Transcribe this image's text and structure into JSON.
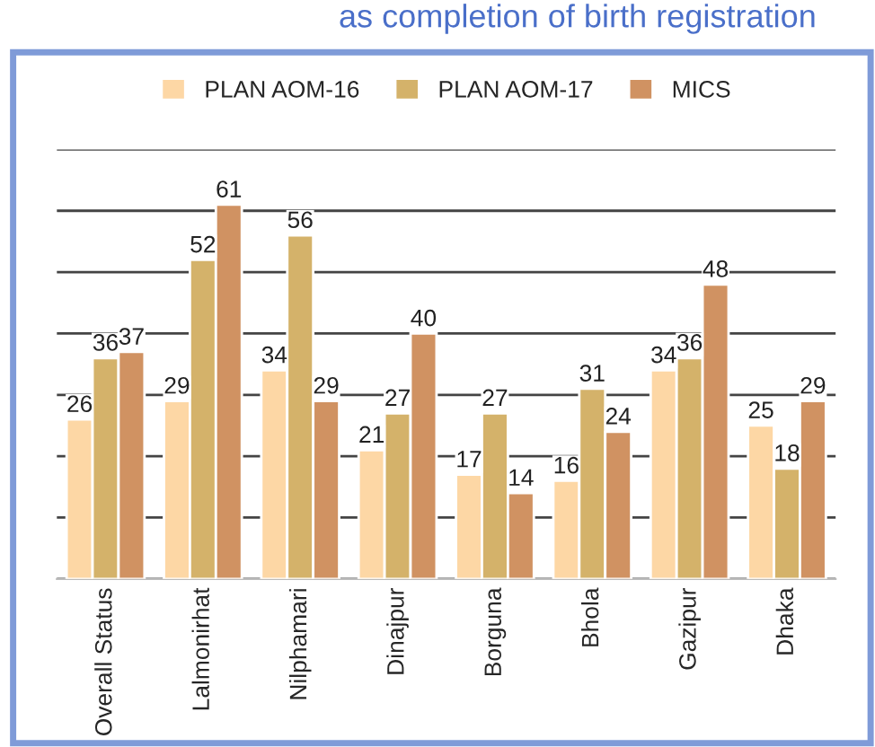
{
  "chart_data": {
    "type": "bar",
    "title": "as completion of birth registration",
    "categories": [
      "Overall Status",
      "Lalmonirhat",
      "Nilphamari",
      "Dinajpur",
      "Borguna",
      "Bhola",
      "Gazipur",
      "Dhaka"
    ],
    "series": [
      {
        "name": "PLAN AOM-16",
        "color": "#fdd7a5",
        "values": [
          26,
          29,
          34,
          21,
          17,
          16,
          34,
          25
        ]
      },
      {
        "name": "PLAN AOM-17",
        "color": "#d4b26a",
        "values": [
          36,
          52,
          56,
          27,
          27,
          31,
          36,
          18
        ]
      },
      {
        "name": "MICS",
        "color": "#d09262",
        "values": [
          37,
          61,
          29,
          40,
          14,
          24,
          48,
          29
        ]
      }
    ],
    "ylim": [
      0,
      70
    ],
    "yticks": [
      {
        "value": 0,
        "label": null
      },
      {
        "value": 10,
        "label": null
      },
      {
        "value": 20,
        "label": null
      },
      {
        "value": 30,
        "label": null
      },
      {
        "value": 40,
        "label": null
      },
      {
        "value": 50,
        "label": null
      },
      {
        "value": 60,
        "label": null
      },
      {
        "value": 70,
        "label": null
      }
    ],
    "grid": "y",
    "legend": "top",
    "data_labels": true
  }
}
